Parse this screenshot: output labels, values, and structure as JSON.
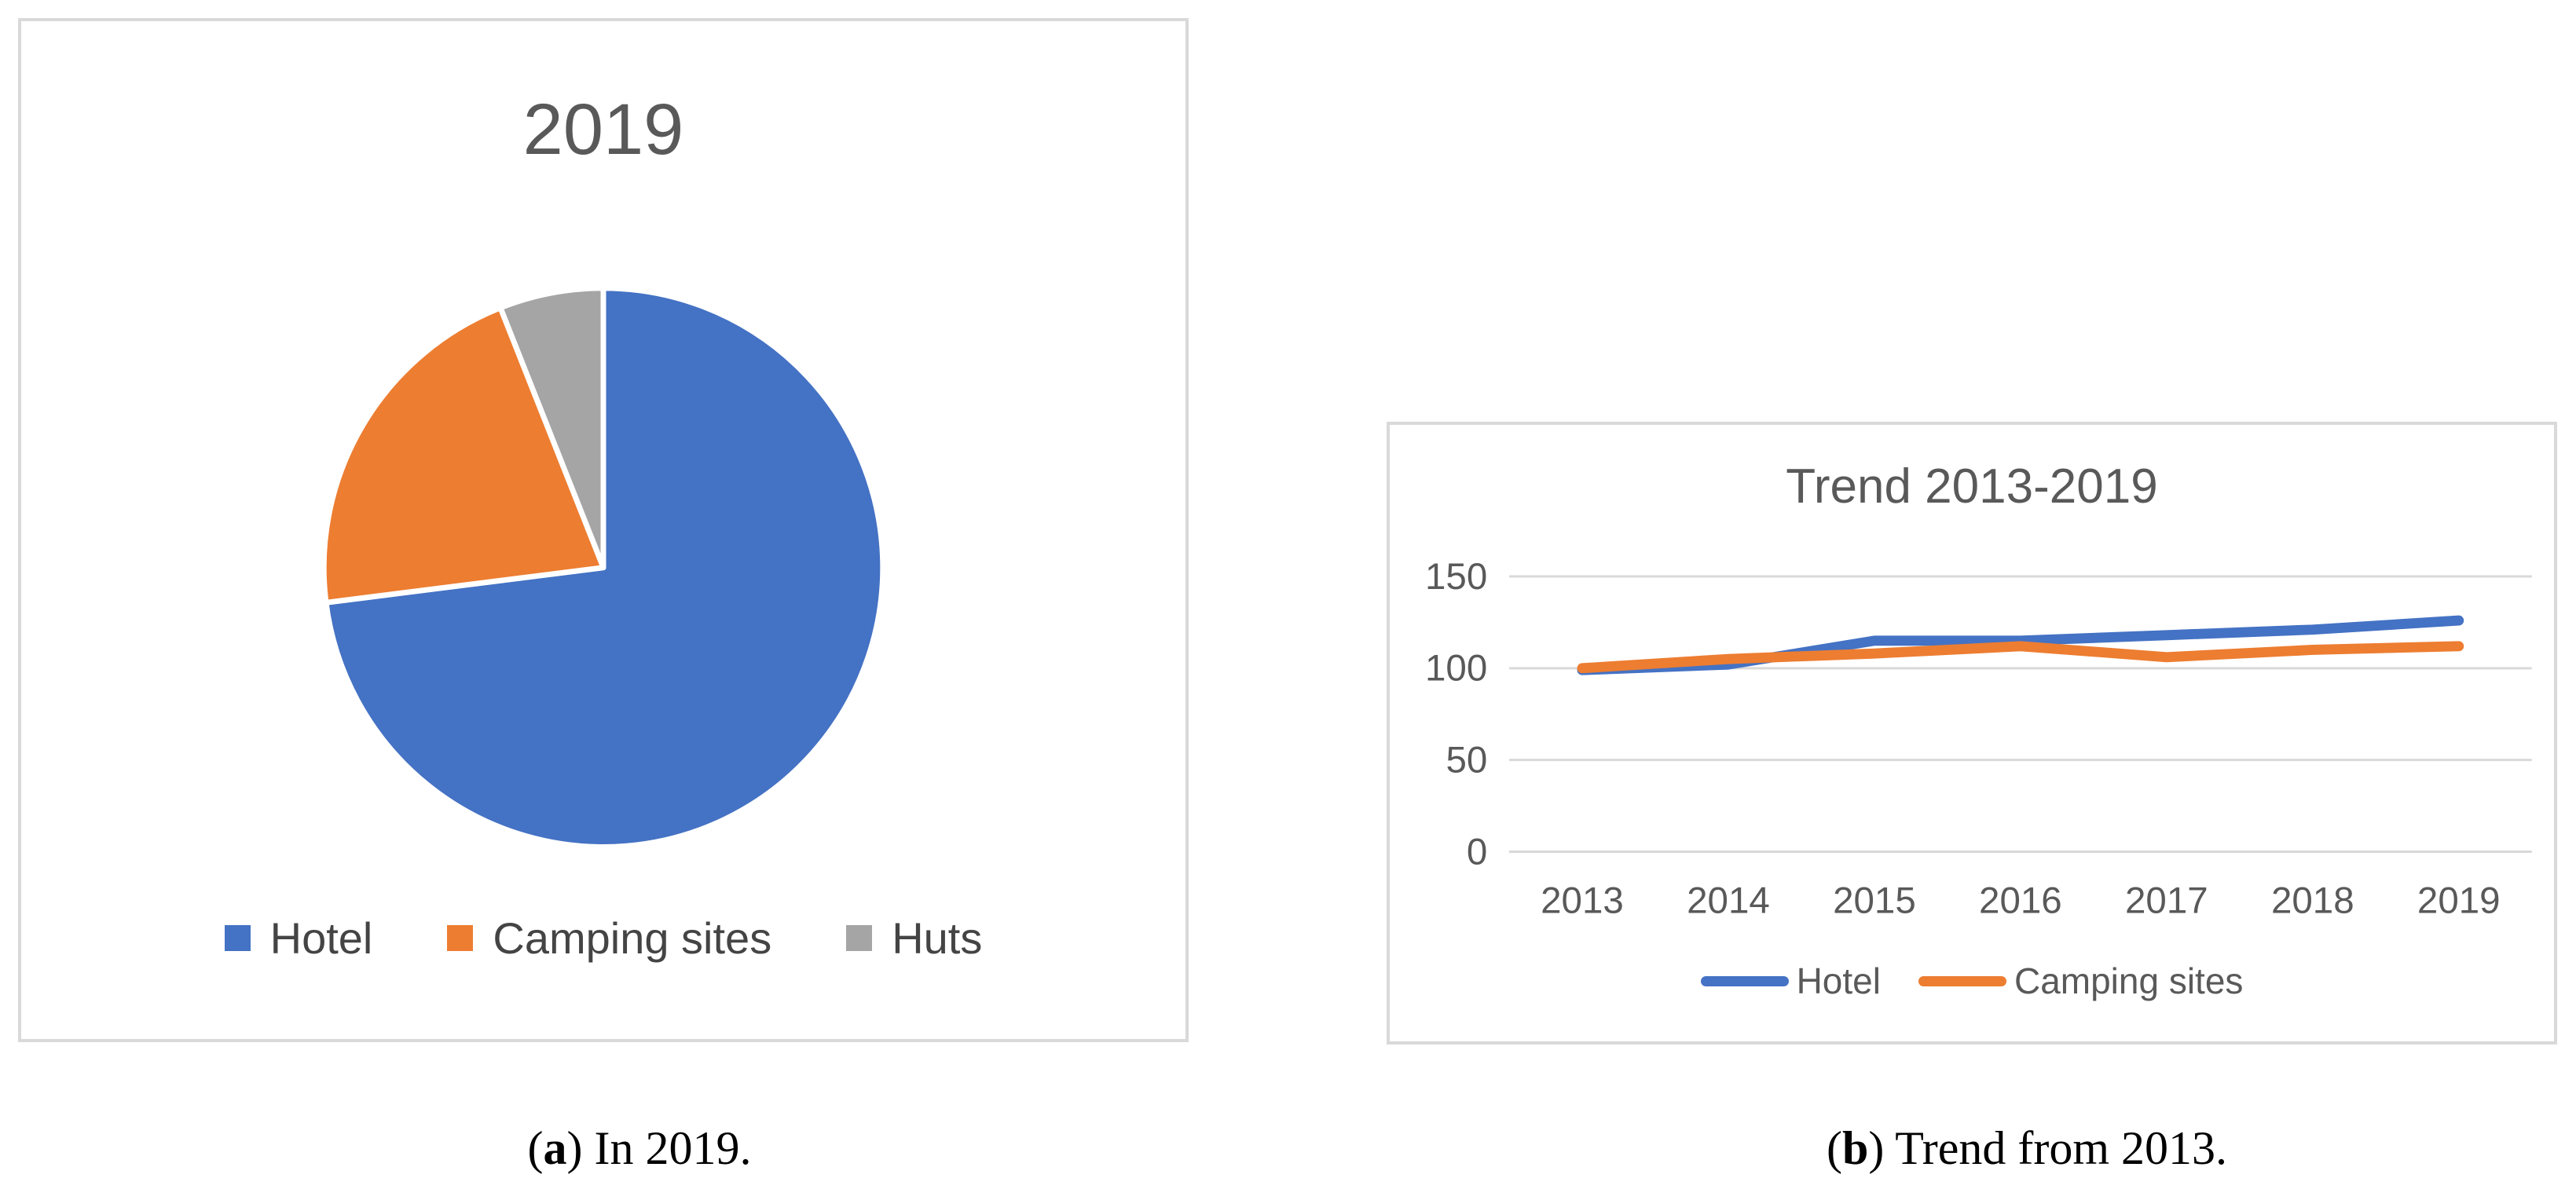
{
  "page": {
    "background": "#ffffff",
    "panel_border_color": "#d9d9d9"
  },
  "captions": {
    "a": {
      "open": "(",
      "letter": "a",
      "close": ") ",
      "text": "In 2019."
    },
    "b": {
      "open": "(",
      "letter": "b",
      "close": ") ",
      "text": "Trend from 2013."
    }
  },
  "chart_data": [
    {
      "type": "pie",
      "title": "2019",
      "labels": [
        "Hotel",
        "Camping sites",
        "Huts"
      ],
      "values": [
        73,
        21,
        6
      ],
      "colors": [
        "#4472C4",
        "#ED7D31",
        "#A5A5A5"
      ],
      "start_angle_deg": 0,
      "direction": "clockwise",
      "slice_gap_color": "#FFFFFF",
      "legend_position": "bottom",
      "title_color": "#595959"
    },
    {
      "type": "line",
      "title": "Trend 2013-2019",
      "x": [
        "2013",
        "2014",
        "2015",
        "2016",
        "2017",
        "2018",
        "2019"
      ],
      "series": [
        {
          "name": "Hotel",
          "color": "#4472C4",
          "values": [
            99,
            102,
            115,
            115,
            118,
            121,
            126
          ]
        },
        {
          "name": "Camping sites",
          "color": "#ED7D31",
          "values": [
            100,
            105,
            108,
            112,
            106,
            110,
            112
          ]
        }
      ],
      "ylim": [
        0,
        150
      ],
      "yticks": [
        150,
        100,
        50,
        0
      ],
      "grid": true,
      "gridline_color": "#D9D9D9",
      "text_color": "#595959",
      "legend_position": "bottom",
      "title_color": "#595959"
    }
  ]
}
